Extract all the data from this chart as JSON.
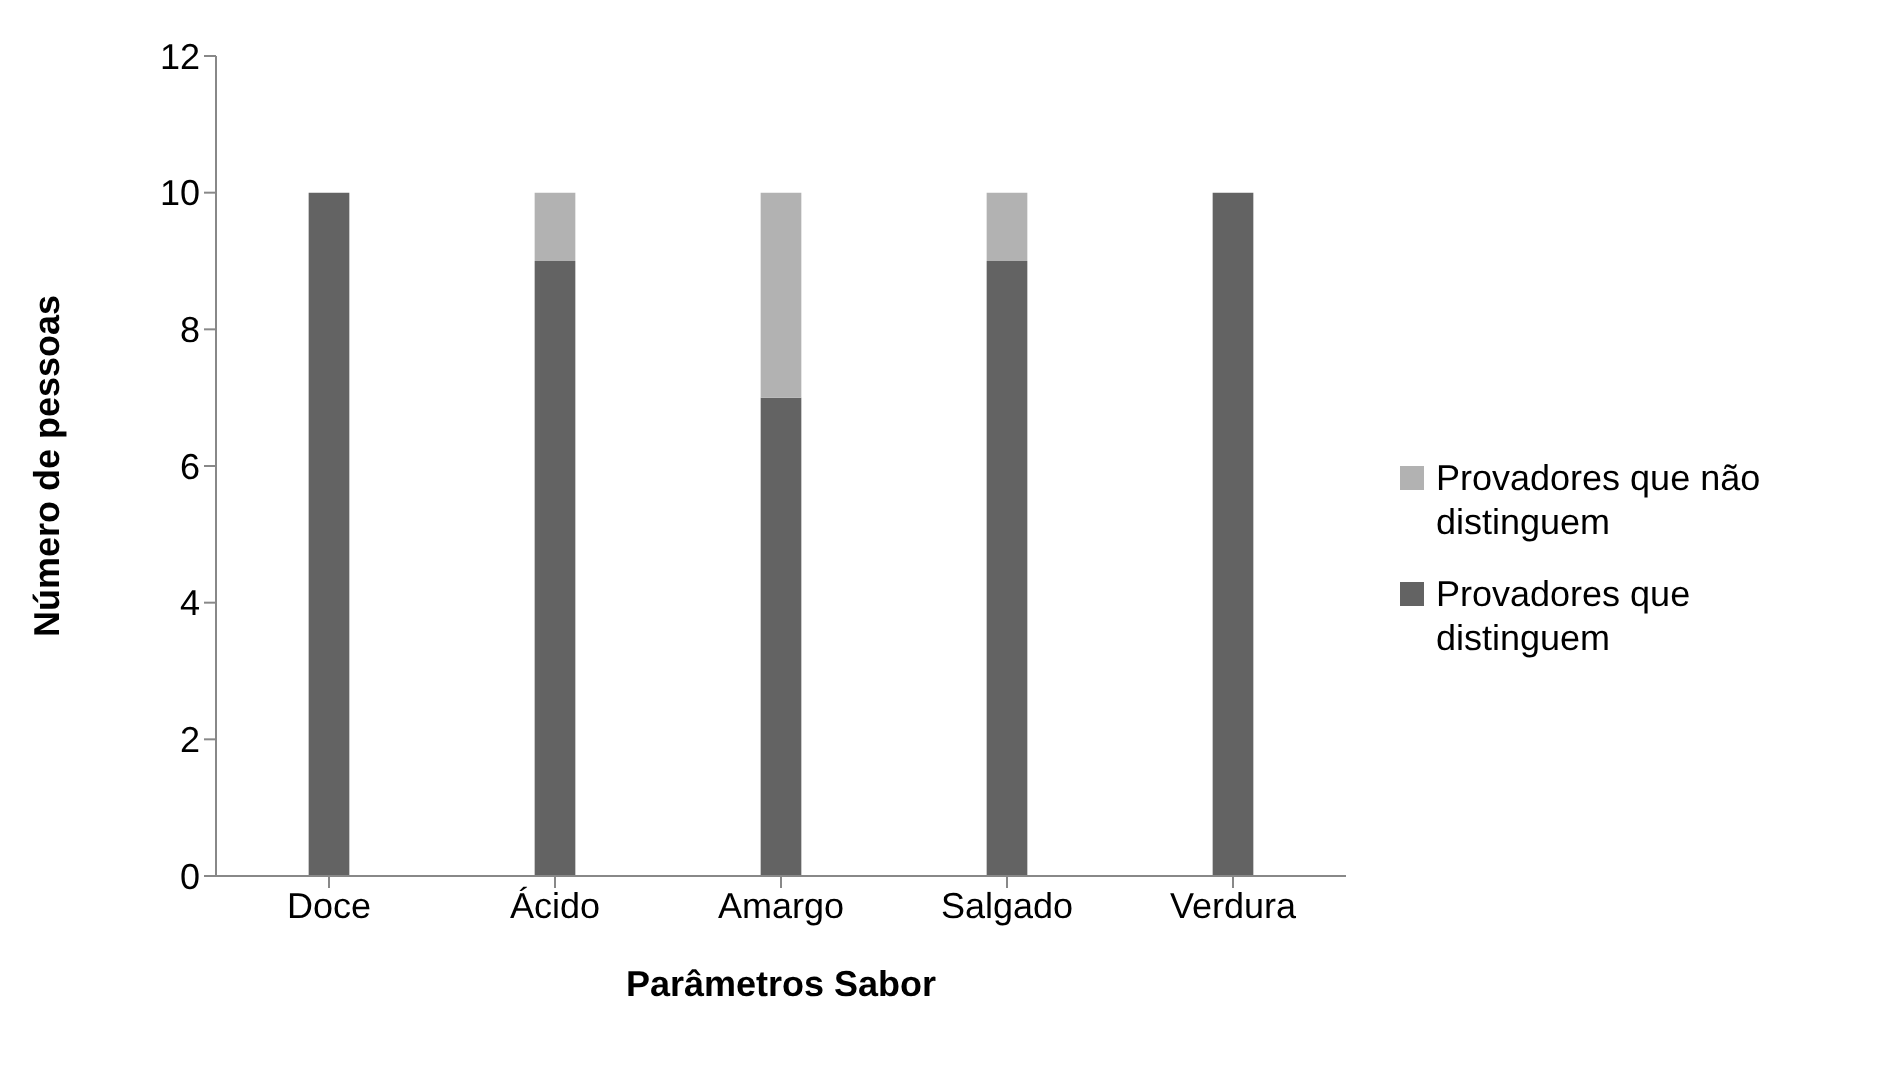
{
  "chart_data": {
    "type": "bar",
    "stacked": true,
    "xlabel": "Parâmetros Sabor",
    "ylabel": "Número de pessoas",
    "categories": [
      "Doce",
      "Ácido",
      "Amargo",
      "Salgado",
      "Verdura"
    ],
    "series": [
      {
        "name": "Provadores que distinguem",
        "color": "#636363",
        "values": [
          10,
          9,
          7,
          9,
          10
        ]
      },
      {
        "name": "Provadores que não distinguem",
        "color": "#b2b2b2",
        "values": [
          0,
          1,
          3,
          1,
          0
        ]
      }
    ],
    "ylim": [
      0,
      12
    ],
    "yticks": [
      0,
      2,
      4,
      6,
      8,
      10,
      12
    ],
    "grid": false,
    "legend": "right"
  }
}
